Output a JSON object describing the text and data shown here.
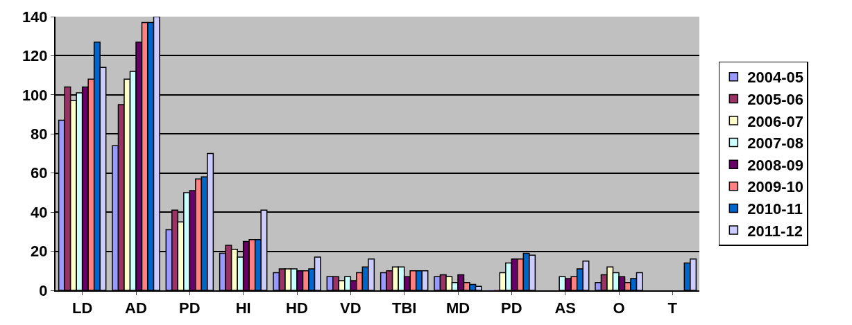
{
  "chart_data": {
    "type": "bar",
    "categories": [
      "LD",
      "AD",
      "PD",
      "HI",
      "HD",
      "VD",
      "TBI",
      "MD",
      "PD",
      "AS",
      "O",
      "T"
    ],
    "series": [
      {
        "name": "2004-05",
        "color": "#9999ff",
        "values": [
          87,
          74,
          31,
          19,
          9,
          7,
          9,
          7,
          0,
          null,
          4,
          null
        ]
      },
      {
        "name": "2005-06",
        "color": "#993366",
        "values": [
          104,
          95,
          41,
          23,
          11,
          7,
          10,
          8,
          0,
          null,
          8,
          null
        ]
      },
      {
        "name": "2006-07",
        "color": "#ffffcc",
        "values": [
          97,
          108,
          35,
          21,
          11,
          5,
          12,
          7,
          9,
          null,
          12,
          null
        ]
      },
      {
        "name": "2007-08",
        "color": "#ccffff",
        "values": [
          101,
          112,
          50,
          17,
          11,
          7,
          12,
          4,
          14,
          7,
          9,
          null
        ]
      },
      {
        "name": "2008-09",
        "color": "#660066",
        "values": [
          104,
          127,
          51,
          25,
          10,
          5,
          7,
          8,
          16,
          6,
          7,
          null
        ]
      },
      {
        "name": "2009-10",
        "color": "#ff8080",
        "values": [
          108,
          137,
          57,
          26,
          10,
          9,
          10,
          4,
          16,
          7,
          4,
          null
        ]
      },
      {
        "name": "2010-11",
        "color": "#0066cc",
        "values": [
          127,
          137,
          58,
          26,
          11,
          12,
          10,
          3,
          19,
          11,
          6,
          14
        ]
      },
      {
        "name": "2011-12",
        "color": "#ccccff",
        "values": [
          114,
          140,
          70,
          41,
          17,
          16,
          10,
          2,
          18,
          15,
          9,
          16
        ]
      }
    ],
    "ylim": [
      0,
      140
    ],
    "yticks": [
      0,
      20,
      40,
      60,
      80,
      100,
      120,
      140
    ],
    "grid": "y",
    "legend": "right"
  }
}
